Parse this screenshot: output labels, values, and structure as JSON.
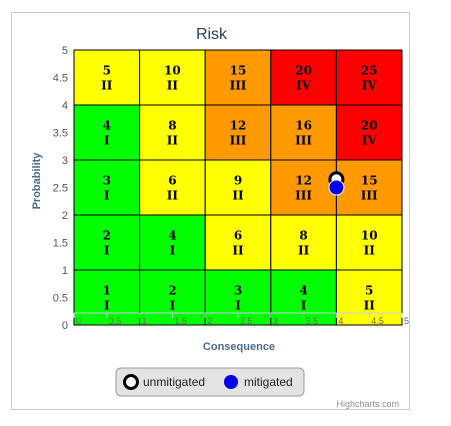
{
  "chart_data": {
    "type": "scatter",
    "title": "Risk",
    "xlabel": "Consequence",
    "ylabel": "Probability",
    "xlim": [
      0,
      5
    ],
    "ylim": [
      0,
      5
    ],
    "x_ticks": [
      "0",
      "0.5",
      "1",
      "1.5",
      "2",
      "2.5",
      "3",
      "3.5",
      "4",
      "4.5",
      "5"
    ],
    "y_ticks": [
      "0",
      "0.5",
      "1",
      "1.5",
      "2",
      "2.5",
      "3",
      "3.5",
      "4",
      "4.5",
      "5"
    ],
    "risk_matrix": [
      {
        "row": 5,
        "cells": [
          {
            "score": "5",
            "level": "II",
            "color": "#ffff00"
          },
          {
            "score": "10",
            "level": "II",
            "color": "#ffff00"
          },
          {
            "score": "15",
            "level": "III",
            "color": "#ff9900"
          },
          {
            "score": "20",
            "level": "IV",
            "color": "#ff0000"
          },
          {
            "score": "25",
            "level": "IV",
            "color": "#ff0000"
          }
        ]
      },
      {
        "row": 4,
        "cells": [
          {
            "score": "4",
            "level": "I",
            "color": "#00ff00"
          },
          {
            "score": "8",
            "level": "II",
            "color": "#ffff00"
          },
          {
            "score": "12",
            "level": "III",
            "color": "#ff9900"
          },
          {
            "score": "16",
            "level": "III",
            "color": "#ff9900"
          },
          {
            "score": "20",
            "level": "IV",
            "color": "#ff0000"
          }
        ]
      },
      {
        "row": 3,
        "cells": [
          {
            "score": "3",
            "level": "I",
            "color": "#00ff00"
          },
          {
            "score": "6",
            "level": "II",
            "color": "#ffff00"
          },
          {
            "score": "9",
            "level": "II",
            "color": "#ffff00"
          },
          {
            "score": "12",
            "level": "III",
            "color": "#ff9900"
          },
          {
            "score": "15",
            "level": "III",
            "color": "#ff9900"
          }
        ]
      },
      {
        "row": 2,
        "cells": [
          {
            "score": "2",
            "level": "I",
            "color": "#00ff00"
          },
          {
            "score": "4",
            "level": "I",
            "color": "#00ff00"
          },
          {
            "score": "6",
            "level": "II",
            "color": "#ffff00"
          },
          {
            "score": "8",
            "level": "II",
            "color": "#ffff00"
          },
          {
            "score": "10",
            "level": "II",
            "color": "#ffff00"
          }
        ]
      },
      {
        "row": 1,
        "cells": [
          {
            "score": "1",
            "level": "I",
            "color": "#00ff00"
          },
          {
            "score": "2",
            "level": "I",
            "color": "#00ff00"
          },
          {
            "score": "3",
            "level": "I",
            "color": "#00ff00"
          },
          {
            "score": "4",
            "level": "I",
            "color": "#00ff00"
          },
          {
            "score": "5",
            "level": "II",
            "color": "#ffff00"
          }
        ]
      }
    ],
    "series": [
      {
        "name": "unmitigated",
        "marker": "hollow-circle",
        "color": "#000000",
        "points": [
          {
            "x": 4.0,
            "y": 2.65
          }
        ]
      },
      {
        "name": "mitigated",
        "marker": "filled-circle",
        "color": "#0000ee",
        "points": [
          {
            "x": 4.0,
            "y": 2.5
          }
        ]
      }
    ],
    "legend_position": "bottom-center",
    "grid": false,
    "credits": "Highcharts.com"
  }
}
